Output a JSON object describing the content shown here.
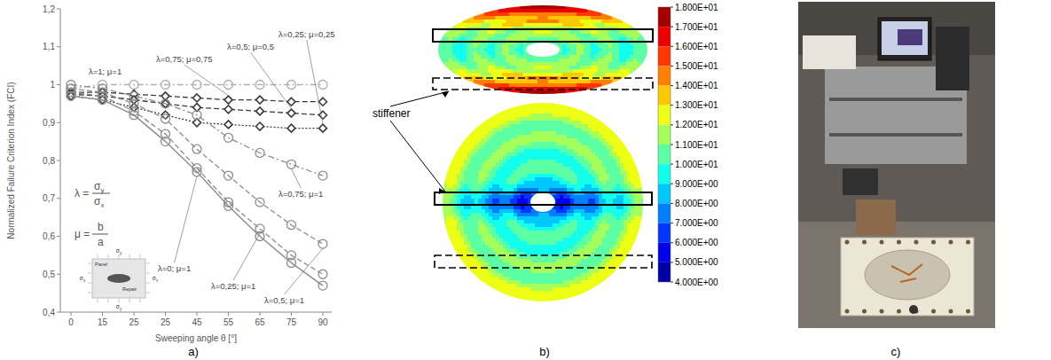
{
  "chart_data": {
    "type": "line",
    "y_label": "Normalized Failure Criterion Index (FCI)",
    "x_label": "Sweeping angle θ [°]",
    "categories": [
      "0",
      "15",
      "25",
      "25",
      "45",
      "55",
      "65",
      "75",
      "90"
    ],
    "ylim": [
      0.4,
      1.2
    ],
    "yticks": [
      {
        "value": 0.4,
        "label": "0,4"
      },
      {
        "value": 0.5,
        "label": "0,5"
      },
      {
        "value": 0.6,
        "label": "0,6"
      },
      {
        "value": 0.7,
        "label": "0,7"
      },
      {
        "value": 0.8,
        "label": "0,8"
      },
      {
        "value": 0.9,
        "label": "0,9"
      },
      {
        "value": 1.0,
        "label": "1"
      },
      {
        "value": 1.1,
        "label": "1,1"
      },
      {
        "value": 1.2,
        "label": "1,2"
      }
    ],
    "grid": false,
    "series": [
      {
        "name": "λ=1; μ=1",
        "color": "#b0b0b0",
        "marker": "circle",
        "line_style": "dashdot",
        "values": [
          0.99,
          1.0,
          1.0,
          1.0,
          1.0,
          1.0,
          1.0,
          1.0,
          1.0
        ]
      },
      {
        "name": "λ=0,75; μ=0,75",
        "color": "#3a3a3a",
        "marker": "diamond",
        "line_style": "dashed",
        "values": [
          0.98,
          0.98,
          0.975,
          0.97,
          0.965,
          0.96,
          0.96,
          0.955,
          0.955
        ]
      },
      {
        "name": "λ=0,5; μ=0,5",
        "color": "#3a3a3a",
        "marker": "diamond",
        "line_style": "dashed",
        "values": [
          0.975,
          0.97,
          0.96,
          0.95,
          0.94,
          0.935,
          0.93,
          0.925,
          0.92
        ]
      },
      {
        "name": "λ=0,25; μ=0,25",
        "color": "#3a3a3a",
        "marker": "diamond",
        "line_style": "dotted",
        "values": [
          0.97,
          0.96,
          0.94,
          0.92,
          0.9,
          0.895,
          0.89,
          0.885,
          0.885
        ]
      },
      {
        "name": "λ=0,75; μ=1",
        "color": "#8c8c8c",
        "marker": "circle",
        "line_style": "dashdot",
        "values": [
          1.0,
          0.99,
          0.97,
          0.95,
          0.92,
          0.86,
          0.82,
          0.79,
          0.76
        ]
      },
      {
        "name": "λ=0,25; μ=1",
        "color": "#8c8c8c",
        "marker": "circle",
        "line_style": "dashed",
        "values": [
          0.98,
          0.97,
          0.93,
          0.87,
          0.78,
          0.69,
          0.62,
          0.55,
          0.5
        ]
      },
      {
        "name": "λ=0,5; μ=1",
        "color": "#8c8c8c",
        "marker": "circle",
        "line_style": "dashed",
        "values": [
          0.99,
          0.98,
          0.95,
          0.91,
          0.83,
          0.76,
          0.69,
          0.63,
          0.58
        ]
      },
      {
        "name": "λ=0; μ=1",
        "color": "#8c8c8c",
        "marker": "circle",
        "line_style": "solid",
        "values": [
          0.97,
          0.96,
          0.92,
          0.85,
          0.77,
          0.68,
          0.6,
          0.53,
          0.47
        ]
      }
    ]
  },
  "annotations": [
    {
      "lhs": "λ =",
      "numerator": "σ",
      "numerator_sub": "y",
      "denominator": "σ",
      "denominator_sub": "x"
    },
    {
      "lhs": "μ =",
      "numerator": "b",
      "denominator": "a"
    }
  ],
  "inset": {
    "panel": "Panel",
    "repair": "Repair",
    "sigma": "σ",
    "sub_x": "x",
    "sub_y": "y"
  },
  "contour": {
    "annotation": "stiffener",
    "colorbar": {
      "range": [
        4,
        18
      ],
      "ticks": [
        {
          "value": 18,
          "label": "1.800E+01"
        },
        {
          "value": 17,
          "label": "1.700E+01"
        },
        {
          "value": 16,
          "label": "1.600E+01"
        },
        {
          "value": 15,
          "label": "1.500E+01"
        },
        {
          "value": 14,
          "label": "1.400E+01"
        },
        {
          "value": 13,
          "label": "1.300E+01"
        },
        {
          "value": 12,
          "label": "1.200E+01"
        },
        {
          "value": 11,
          "label": "1.100E+01"
        },
        {
          "value": 10,
          "label": "1.000E+01"
        },
        {
          "value": 9,
          "label": "9.000E+00"
        },
        {
          "value": 8,
          "label": "8.000E+00"
        },
        {
          "value": 7,
          "label": "7.000E+00"
        },
        {
          "value": 6,
          "label": "6.000E+00"
        },
        {
          "value": 5,
          "label": "5.000E+00"
        },
        {
          "value": 4,
          "label": "4.000E+00"
        }
      ]
    }
  },
  "panel_labels": [
    "a)",
    "b)",
    "c)"
  ]
}
